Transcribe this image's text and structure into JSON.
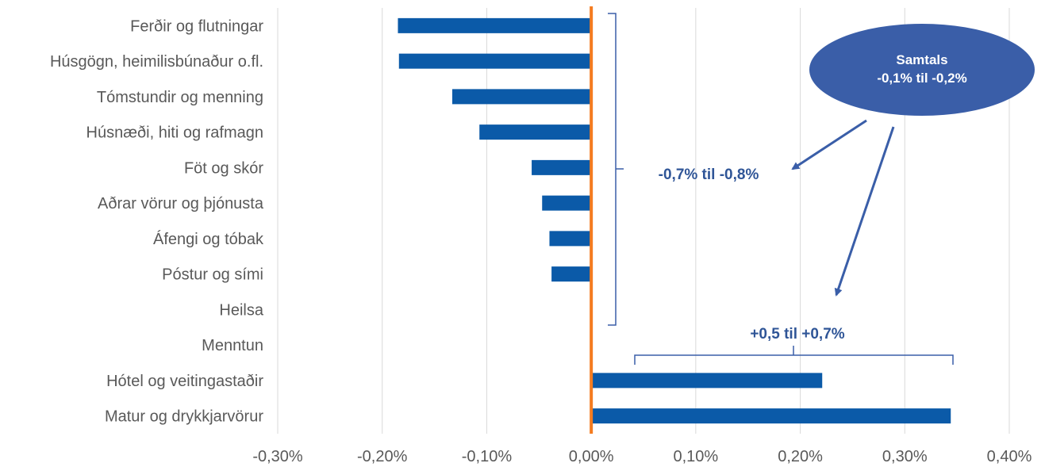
{
  "chart_data": {
    "type": "bar",
    "orientation": "horizontal",
    "categories": [
      "Ferðir og flutningar",
      "Húsgögn, heimilisbúnaður o.fl.",
      "Tómstundir og menning",
      "Húsnæði, hiti og rafmagn",
      "Föt og skór",
      "Aðrar vörur og þjónusta",
      "Áfengi og tóbak",
      "Póstur og sími",
      "Heilsa",
      "Menntun",
      "Hótel og veitingastaðir",
      "Matur og drykkjarvörur"
    ],
    "values": [
      -0.185,
      -0.184,
      -0.133,
      -0.107,
      -0.057,
      -0.047,
      -0.04,
      -0.038,
      0.0,
      0.0,
      0.221,
      0.344
    ],
    "unit": "%",
    "xlim": [
      -0.3,
      0.4
    ],
    "xticks": [
      -0.3,
      -0.2,
      -0.1,
      0.0,
      0.1,
      0.2,
      0.3,
      0.4
    ],
    "xtick_labels": [
      "-0,30%",
      "-0,20%",
      "-0,10%",
      "0,00%",
      "0,10%",
      "0,20%",
      "0,30%",
      "0,40%"
    ],
    "grid": true,
    "bar_color": "#0b5aa8",
    "zero_line_color": "#f47c20",
    "annotations": {
      "negative_bracket_label": "-0,7% til -0,8%",
      "positive_bracket_label": "+0,5 til +0,7%",
      "total_title": "Samtals",
      "total_value": "-0,1% til -0,2%",
      "ellipse_color": "#3a5ea8",
      "text_color": "#2f5597"
    }
  }
}
